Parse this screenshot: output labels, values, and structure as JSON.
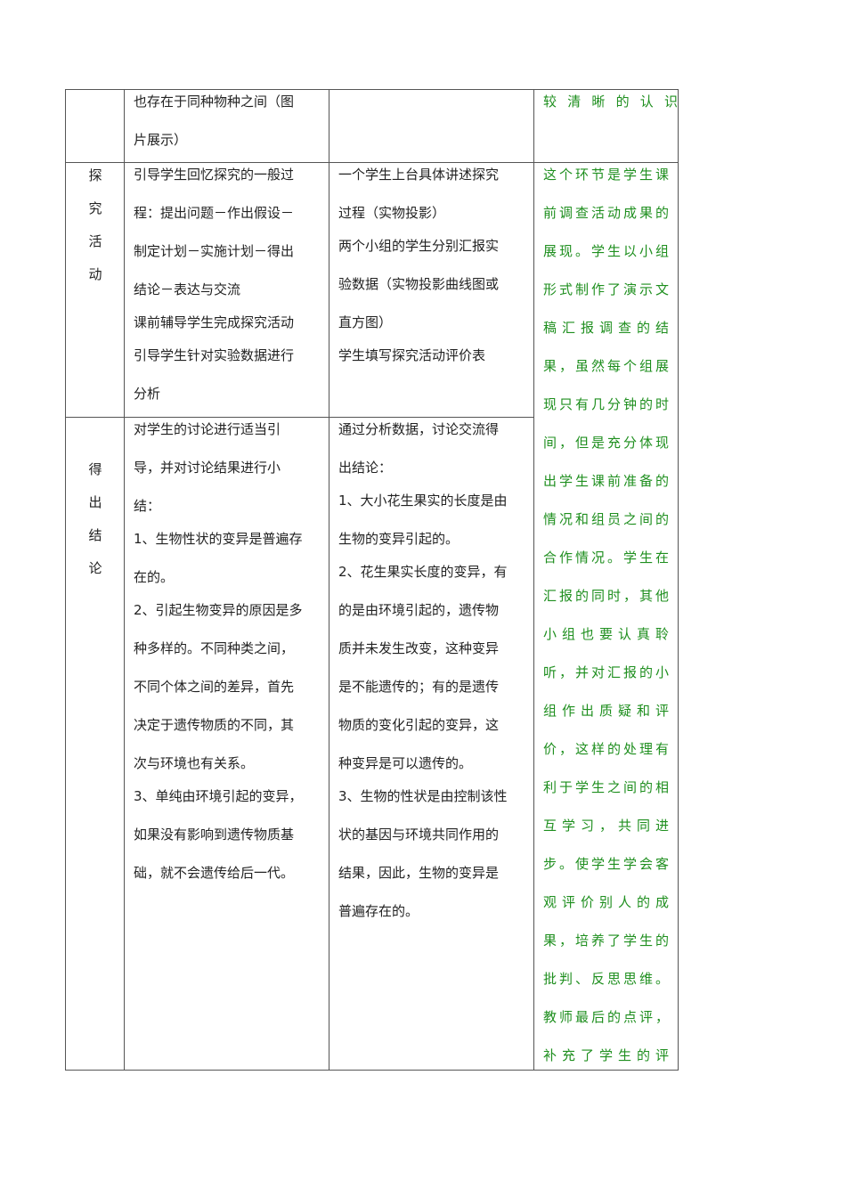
{
  "table": {
    "row1": {
      "teacher": [
        [
          "也存在于同种物种之间（图",
          "片展示）"
        ]
      ],
      "student": [],
      "note": [
        [
          "较清晰的认识"
        ]
      ]
    },
    "row2": {
      "stage": [
        "探",
        "究",
        "活",
        "动"
      ],
      "teacher": [
        [
          "引导学生回忆探究的一般过",
          "程：提出问题－作出假设－",
          "制定计划－实施计划－得出",
          "结论－表达与交流"
        ],
        [
          "课前辅导学生完成探究活动"
        ],
        [
          "引导学生针对实验数据进行",
          "分析"
        ]
      ],
      "student": [
        [
          "一个学生上台具体讲述探究",
          "过程（实物投影）"
        ],
        [
          "两个小组的学生分别汇报实",
          "验数据（实物投影曲线图或",
          "直方图）"
        ],
        [
          "学生填写探究活动评价表"
        ]
      ]
    },
    "row3": {
      "stage": [
        "得",
        "出",
        "结",
        "论"
      ],
      "teacher": [
        [
          "对学生的讨论进行适当引",
          "导，并对讨论结果进行小",
          "结："
        ],
        [
          "1、生物性状的变异是普遍存",
          "在的。"
        ],
        [
          "2、引起生物变异的原因是多",
          "种多样的。不同种类之间，",
          "不同个体之间的差异，首先",
          "决定于遗传物质的不同，其",
          "次与环境也有关系。"
        ],
        [
          "3、单纯由环境引起的变异，",
          "如果没有影响到遗传物质基",
          "础，就不会遗传给后一代。"
        ]
      ],
      "student": [
        [
          "通过分析数据，讨论交流得",
          "出结论："
        ],
        [
          "1、大小花生果实的长度是由",
          "生物的变异引起的。"
        ],
        [
          "2、花生果实长度的变异，有",
          "的是由环境引起的，遗传物",
          "质并未发生改变，这种变异",
          "是不能遗传的；有的是遗传",
          "物质的变化引起的变异，这",
          "种变异是可以遗传的。"
        ],
        [
          "3、生物的性状是由控制该性",
          "状的基因与环境共同作用的",
          "结果，因此，生物的变异是",
          "普遍存在的。"
        ]
      ]
    },
    "note_merged": [
      [
        "这个环节是学生课",
        "前调查活动成果的",
        "展现。学生以小组",
        "形式制作了演示文",
        "稿汇报调查的结",
        "果，虽然每个组展",
        "现只有几分钟的时",
        "间，但是充分体现",
        "出学生课前准备的",
        "情况和组员之间的",
        "合作情况。学生在",
        "汇报的同时，其他",
        "小组也要认真聆",
        "听，并对汇报的小",
        "组作出质疑和评",
        "价，这样的处理有",
        "利于学生之间的相",
        "互学习，共同进",
        "步。使学生学会客",
        "观评价别人的成",
        "果，培养了学生的",
        "批判、反思思维。",
        "教师最后的点评，",
        "补充了学生的评"
      ]
    ],
    "colors": {
      "note_text": "#1f8f1f",
      "border": "#555555"
    }
  }
}
